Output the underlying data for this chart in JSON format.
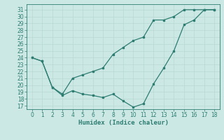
{
  "line1_x": [
    0,
    1,
    2,
    3,
    4,
    5,
    6,
    7,
    8,
    9,
    10,
    11,
    12,
    13,
    14,
    15,
    16,
    17,
    18
  ],
  "line1_y": [
    24.0,
    23.5,
    19.7,
    18.7,
    21.0,
    21.5,
    22.0,
    22.5,
    24.5,
    25.5,
    26.5,
    27.0,
    29.5,
    29.5,
    30.0,
    31.0,
    31.0,
    31.0,
    31.0
  ],
  "line2_x": [
    0,
    1,
    2,
    3,
    4,
    5,
    6,
    7,
    8,
    9,
    10,
    11,
    12,
    13,
    14,
    15,
    16,
    17,
    18
  ],
  "line2_y": [
    24.0,
    23.5,
    19.7,
    18.5,
    19.2,
    18.7,
    18.5,
    18.2,
    18.7,
    17.7,
    16.8,
    17.3,
    20.2,
    22.5,
    25.0,
    28.8,
    29.5,
    31.0,
    31.0
  ],
  "line_color": "#2e7d72",
  "bg_color": "#cce8e4",
  "grid_color": "#b8d8d4",
  "xlabel": "Humidex (Indice chaleur)",
  "ylim": [
    16.5,
    31.8
  ],
  "xlim": [
    -0.5,
    18.5
  ],
  "yticks": [
    17,
    18,
    19,
    20,
    21,
    22,
    23,
    24,
    25,
    26,
    27,
    28,
    29,
    30,
    31
  ],
  "xticks": [
    0,
    1,
    2,
    3,
    4,
    5,
    6,
    7,
    8,
    9,
    10,
    11,
    12,
    13,
    14,
    15,
    16,
    17,
    18
  ],
  "tick_fontsize": 5.5,
  "xlabel_fontsize": 6.5
}
